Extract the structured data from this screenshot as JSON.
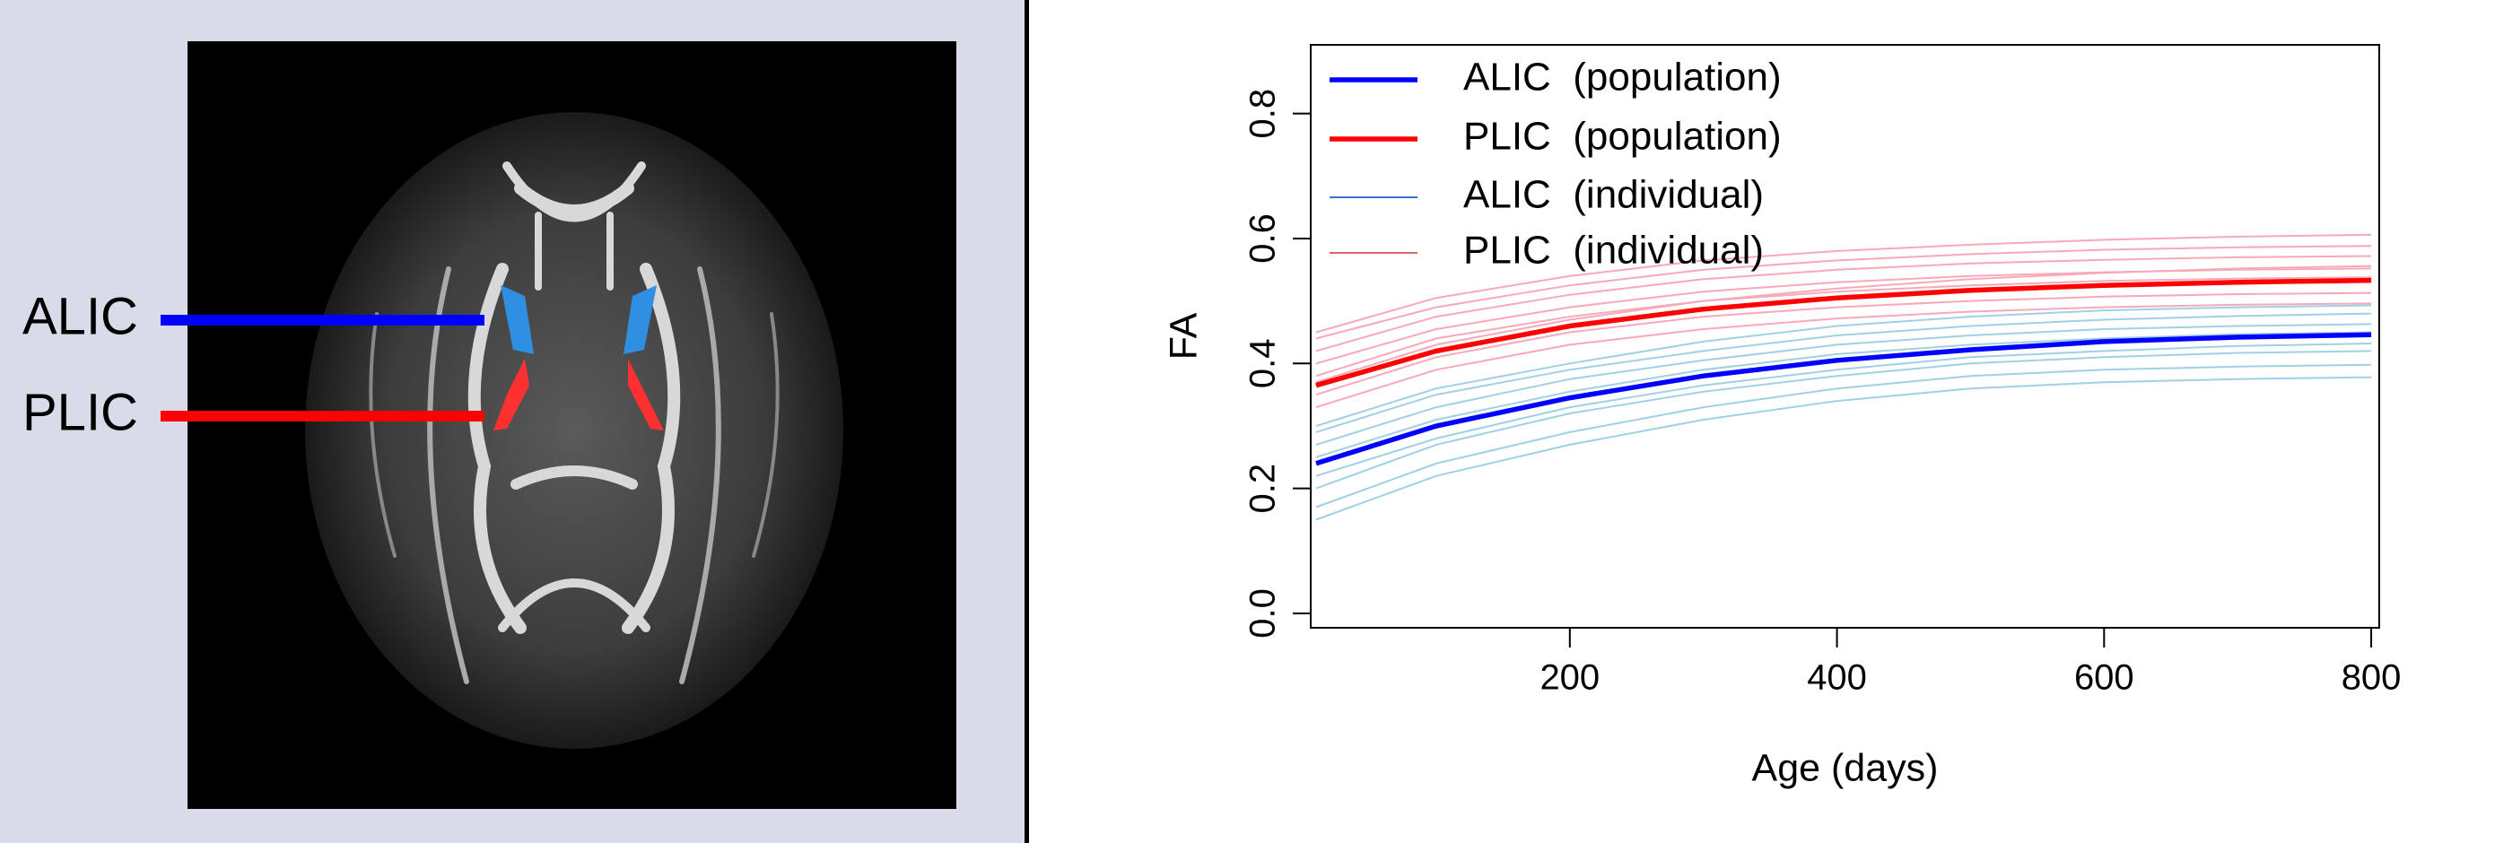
{
  "image_labels": [
    {
      "text": "ALIC",
      "color": "#0000ff"
    },
    {
      "text": "PLIC",
      "color": "#ff0000"
    }
  ],
  "chart_data": {
    "type": "line",
    "xlabel": "Age (days)",
    "ylabel": "FA",
    "x": [
      10,
      100,
      200,
      300,
      400,
      500,
      600,
      700,
      800
    ],
    "xlim": [
      6,
      806
    ],
    "xticks": [
      200,
      400,
      600,
      800
    ],
    "ylim": [
      -0.023,
      0.91
    ],
    "yticks": [
      {
        "value": 0,
        "label": "0.0"
      },
      0.2,
      0.4,
      0.6,
      0.8
    ],
    "legend": "top-left",
    "series": [
      {
        "name": "ALIC  (population)",
        "color": "#0000ff",
        "values": [
          0.24,
          0.3,
          0.345,
          0.38,
          0.405,
          0.422,
          0.435,
          0.442,
          0.446
        ]
      },
      {
        "name": "PLIC  (population)",
        "color": "#ff0000",
        "values": [
          0.365,
          0.42,
          0.46,
          0.487,
          0.505,
          0.517,
          0.525,
          0.53,
          0.533
        ]
      },
      {
        "name": "ALIC  (individual)",
        "color": "#9fd0e4",
        "lines": [
          [
            0.15,
            0.22,
            0.27,
            0.31,
            0.34,
            0.36,
            0.37,
            0.375,
            0.378
          ],
          [
            0.17,
            0.24,
            0.29,
            0.33,
            0.36,
            0.38,
            0.39,
            0.395,
            0.398
          ],
          [
            0.2,
            0.27,
            0.32,
            0.355,
            0.38,
            0.4,
            0.41,
            0.417,
            0.42
          ],
          [
            0.22,
            0.28,
            0.33,
            0.365,
            0.39,
            0.41,
            0.42,
            0.428,
            0.432
          ],
          [
            0.25,
            0.31,
            0.355,
            0.39,
            0.415,
            0.43,
            0.44,
            0.447,
            0.45
          ],
          [
            0.27,
            0.33,
            0.375,
            0.405,
            0.43,
            0.445,
            0.455,
            0.46,
            0.463
          ],
          [
            0.29,
            0.35,
            0.39,
            0.42,
            0.445,
            0.46,
            0.47,
            0.476,
            0.48
          ],
          [
            0.3,
            0.36,
            0.4,
            0.435,
            0.46,
            0.475,
            0.485,
            0.49,
            0.493
          ]
        ]
      },
      {
        "name": "PLIC  (individual)",
        "color": "#f7a9b8",
        "lines": [
          [
            0.33,
            0.39,
            0.43,
            0.455,
            0.472,
            0.483,
            0.49,
            0.494,
            0.496
          ],
          [
            0.35,
            0.41,
            0.45,
            0.475,
            0.49,
            0.5,
            0.507,
            0.511,
            0.513
          ],
          [
            0.38,
            0.44,
            0.475,
            0.5,
            0.515,
            0.525,
            0.532,
            0.536,
            0.538
          ],
          [
            0.4,
            0.455,
            0.49,
            0.515,
            0.53,
            0.54,
            0.546,
            0.55,
            0.552
          ],
          [
            0.42,
            0.475,
            0.51,
            0.535,
            0.55,
            0.56,
            0.566,
            0.57,
            0.572
          ],
          [
            0.44,
            0.49,
            0.525,
            0.55,
            0.565,
            0.575,
            0.582,
            0.586,
            0.588
          ],
          [
            0.37,
            0.43,
            0.47,
            0.5,
            0.52,
            0.535,
            0.545,
            0.552,
            0.556
          ],
          [
            0.45,
            0.505,
            0.54,
            0.565,
            0.58,
            0.59,
            0.598,
            0.603,
            0.606
          ]
        ]
      }
    ]
  }
}
